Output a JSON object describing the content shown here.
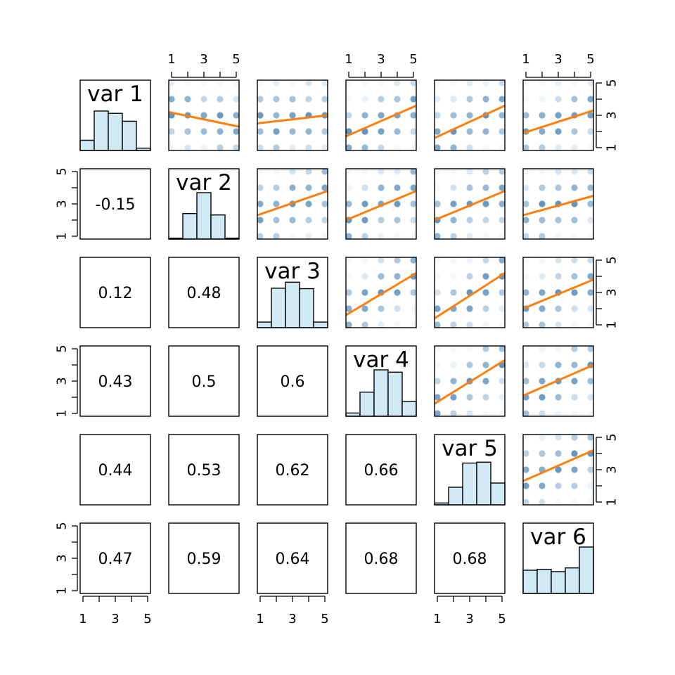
{
  "chart_data": {
    "type": "scatter",
    "kind": "pairs-matrix",
    "variables": [
      "var 1",
      "var 2",
      "var 3",
      "var 4",
      "var 5",
      "var 6"
    ],
    "axis_ticks": [
      "1",
      "3",
      "5"
    ],
    "axis_range": [
      1,
      5
    ],
    "lower_panels": "correlation coefficients",
    "diagonal_panels": "histograms",
    "upper_panels": "jittered points with linear fit line",
    "correlations": [
      {
        "row": 2,
        "col": 1,
        "value": "-0.15"
      },
      {
        "row": 3,
        "col": 1,
        "value": "0.12"
      },
      {
        "row": 3,
        "col": 2,
        "value": "0.48"
      },
      {
        "row": 4,
        "col": 1,
        "value": "0.43"
      },
      {
        "row": 4,
        "col": 2,
        "value": "0.5"
      },
      {
        "row": 4,
        "col": 3,
        "value": "0.6"
      },
      {
        "row": 5,
        "col": 1,
        "value": "0.44"
      },
      {
        "row": 5,
        "col": 2,
        "value": "0.53"
      },
      {
        "row": 5,
        "col": 3,
        "value": "0.62"
      },
      {
        "row": 5,
        "col": 4,
        "value": "0.66"
      },
      {
        "row": 6,
        "col": 1,
        "value": "0.47"
      },
      {
        "row": 6,
        "col": 2,
        "value": "0.59"
      },
      {
        "row": 6,
        "col": 3,
        "value": "0.64"
      },
      {
        "row": 6,
        "col": 4,
        "value": "0.68"
      },
      {
        "row": 6,
        "col": 5,
        "value": "0.68"
      }
    ],
    "histograms": [
      {
        "variable": "var 1",
        "breaks": [
          0.5,
          1.5,
          2.5,
          3.5,
          4.5,
          5.5
        ],
        "counts": [
          0.22,
          0.85,
          0.8,
          0.63,
          0.05
        ]
      },
      {
        "variable": "var 2",
        "breaks": [
          0.5,
          1.5,
          2.5,
          3.5,
          4.5,
          5.5
        ],
        "counts": [
          0.02,
          0.55,
          1.0,
          0.52,
          0.02
        ]
      },
      {
        "variable": "var 3",
        "breaks": [
          0.5,
          1.5,
          2.5,
          3.5,
          4.5,
          5.5
        ],
        "counts": [
          0.12,
          0.85,
          0.98,
          0.84,
          0.12
        ]
      },
      {
        "variable": "var 4",
        "breaks": [
          0.5,
          1.5,
          2.5,
          3.5,
          4.5,
          5.5
        ],
        "counts": [
          0.07,
          0.52,
          1.0,
          0.95,
          0.32
        ]
      },
      {
        "variable": "var 5",
        "breaks": [
          0.5,
          1.5,
          2.5,
          3.5,
          4.5,
          5.5
        ],
        "counts": [
          0.04,
          0.38,
          0.9,
          0.92,
          0.47
        ]
      },
      {
        "variable": "var 6",
        "breaks": [
          0.5,
          1.5,
          2.5,
          3.5,
          4.5,
          5.5
        ],
        "counts": [
          0.5,
          0.52,
          0.47,
          0.55,
          1.0
        ]
      }
    ],
    "fit_lines": [
      {
        "x": "var 2",
        "y": "var 1",
        "y_at_1": 3.2,
        "y_at_5": 2.3
      },
      {
        "x": "var 3",
        "y": "var 1",
        "y_at_1": 2.5,
        "y_at_5": 3.0
      },
      {
        "x": "var 4",
        "y": "var 1",
        "y_at_1": 1.7,
        "y_at_5": 3.6
      },
      {
        "x": "var 5",
        "y": "var 1",
        "y_at_1": 1.6,
        "y_at_5": 3.6
      },
      {
        "x": "var 6",
        "y": "var 1",
        "y_at_1": 1.9,
        "y_at_5": 3.3
      },
      {
        "x": "var 3",
        "y": "var 2",
        "y_at_1": 2.3,
        "y_at_5": 3.8
      },
      {
        "x": "var 4",
        "y": "var 2",
        "y_at_1": 2.0,
        "y_at_5": 3.8
      },
      {
        "x": "var 5",
        "y": "var 2",
        "y_at_1": 2.0,
        "y_at_5": 3.8
      },
      {
        "x": "var 6",
        "y": "var 2",
        "y_at_1": 2.3,
        "y_at_5": 3.5
      },
      {
        "x": "var 4",
        "y": "var 3",
        "y_at_1": 1.6,
        "y_at_5": 4.2
      },
      {
        "x": "var 5",
        "y": "var 3",
        "y_at_1": 1.4,
        "y_at_5": 4.2
      },
      {
        "x": "var 6",
        "y": "var 3",
        "y_at_1": 2.0,
        "y_at_5": 3.8
      },
      {
        "x": "var 5",
        "y": "var 4",
        "y_at_1": 1.6,
        "y_at_5": 4.3
      },
      {
        "x": "var 6",
        "y": "var 4",
        "y_at_1": 2.1,
        "y_at_5": 4.0
      },
      {
        "x": "var 6",
        "y": "var 5",
        "y_at_1": 2.3,
        "y_at_5": 4.2
      }
    ],
    "point_color": "#4682b4",
    "line_color": "#ff7f0e",
    "hist_fill": "#d1e9f5",
    "grid": false
  }
}
